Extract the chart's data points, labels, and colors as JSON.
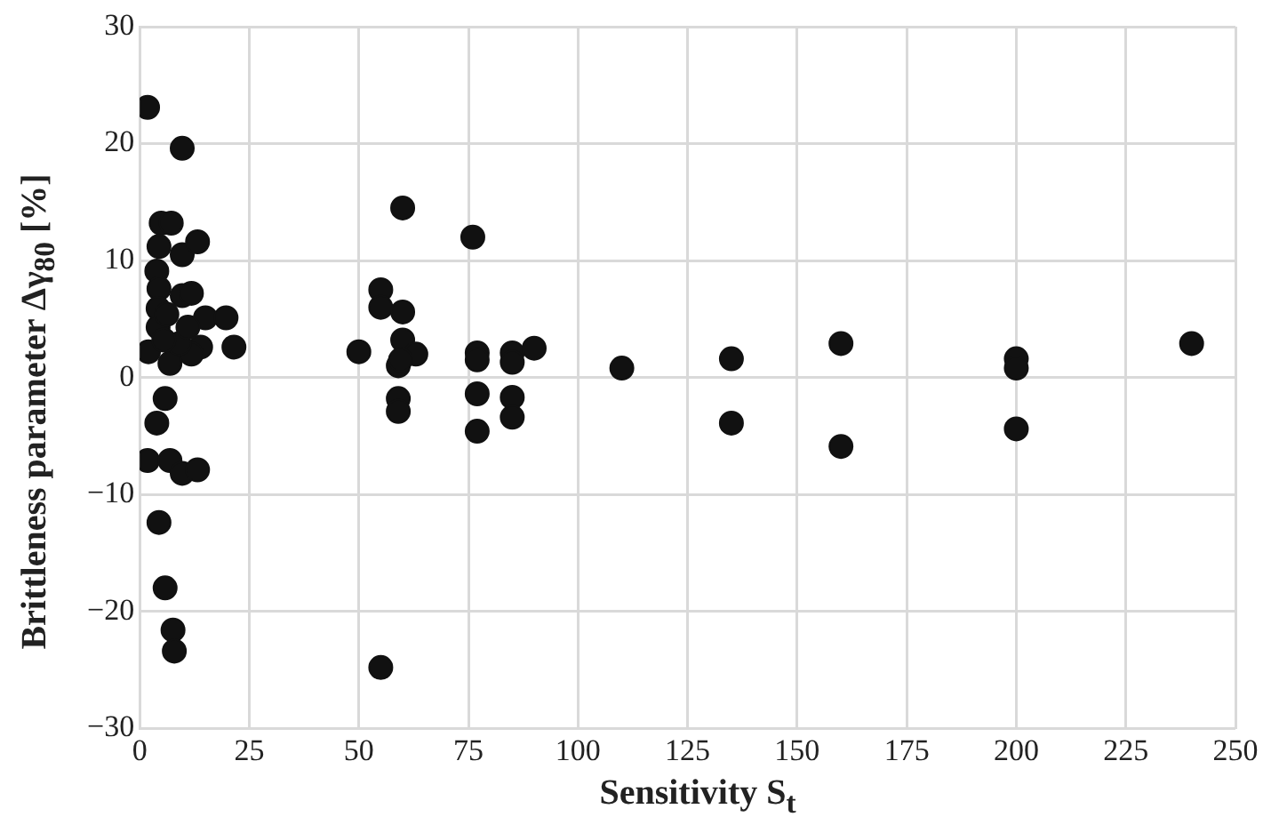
{
  "chart_data": {
    "type": "scatter",
    "xlabel": "Sensitivity S$_{t}$",
    "ylabel": "Brittleness parameter Δγ$_{80}$ [%]",
    "xlim": [
      0,
      250
    ],
    "xticks": [
      0,
      25,
      50,
      75,
      100,
      125,
      150,
      175,
      200,
      225,
      250
    ],
    "ylim": [
      -30,
      30
    ],
    "yticks": [
      -30,
      -20,
      -10,
      0,
      10,
      20,
      30
    ],
    "grid": true,
    "marker": "circle",
    "legend": false,
    "series": [
      {
        "color": "#111111",
        "x": [
          1.8,
          9.7,
          4.9,
          7.2,
          4.4,
          9.7,
          13.2,
          3.9,
          4.4,
          9.7,
          11.8,
          15,
          19.7,
          21.5,
          13.9,
          11.8,
          6.9,
          2,
          4.2,
          4.2,
          6.2,
          9,
          5.5,
          11,
          5.8,
          3.9,
          1.8,
          6.9,
          9.7,
          13.2,
          4.4,
          5.8,
          7.6,
          7.9,
          60,
          76,
          55,
          55,
          60,
          50,
          60,
          63,
          59,
          59.5,
          77,
          77,
          85,
          85,
          90,
          110,
          59,
          59,
          77,
          85,
          85,
          77,
          55,
          135,
          135,
          160,
          160,
          200,
          200,
          200,
          240
        ],
        "values": [
          23.1,
          19.6,
          13.2,
          13.2,
          11.2,
          10.5,
          11.6,
          9.1,
          7.6,
          7,
          7.2,
          5.1,
          5.1,
          2.6,
          2.6,
          2,
          1.2,
          2.2,
          5.9,
          4.3,
          5.4,
          2.9,
          3.2,
          4.3,
          -1.8,
          -3.9,
          -7.1,
          -7.1,
          -8.2,
          -7.9,
          -12.4,
          -18,
          -21.6,
          -23.4,
          14.5,
          12,
          7.5,
          6,
          5.6,
          2.2,
          3.2,
          2,
          1,
          1.5,
          2.1,
          1.5,
          2.1,
          1.3,
          2.5,
          0.8,
          -1.8,
          -2.9,
          -1.4,
          -1.7,
          -3.4,
          -4.6,
          -24.8,
          1.6,
          -3.9,
          2.9,
          -5.9,
          1.6,
          0.8,
          -4.4,
          2.9
        ]
      }
    ]
  }
}
